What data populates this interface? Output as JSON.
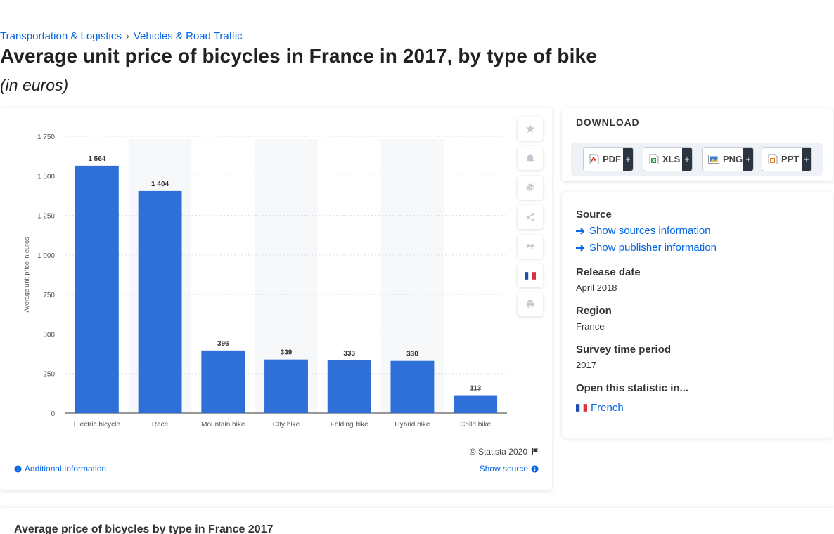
{
  "breadcrumb": {
    "items": [
      "Transportation & Logistics",
      "Vehicles & Road Traffic"
    ],
    "separator": "›"
  },
  "page": {
    "title": "Average unit price of bicycles in France in 2017, by type of bike",
    "subtitle": "(in euros)"
  },
  "chart_data": {
    "type": "bar",
    "categories": [
      "Electric bicycle",
      "Race",
      "Mountain bike",
      "City bike",
      "Folding bike",
      "Hybrid bike",
      "Child bike"
    ],
    "values": [
      1564,
      1404,
      396,
      339,
      333,
      330,
      113
    ],
    "value_labels": [
      "1 564",
      "1 404",
      "396",
      "339",
      "333",
      "330",
      "113"
    ],
    "ylabel": "Average unit price in euros",
    "xlabel": "",
    "ylim": [
      0,
      1750
    ],
    "yticks": [
      0,
      250,
      500,
      750,
      1000,
      1250,
      1500,
      1750
    ],
    "ytick_labels": [
      "0",
      "250",
      "500",
      "750",
      "1 000",
      "1 250",
      "1 500",
      "1 750"
    ],
    "bar_color": "#2f6fd8",
    "grid": true
  },
  "chart_footer": {
    "credit": "© Statista 2020",
    "additional_info": "Additional Information",
    "show_source": "Show source"
  },
  "toolbar": {
    "buttons": [
      "star-icon",
      "bell-icon",
      "gear-icon",
      "share-icon",
      "quote-icon",
      "french-flag-icon",
      "print-icon"
    ]
  },
  "download": {
    "title": "DOWNLOAD",
    "formats": [
      {
        "label": "PDF",
        "color": "#d9352b"
      },
      {
        "label": "XLS",
        "color": "#2f9a45"
      },
      {
        "label": "PNG",
        "color": "#3a7bd5"
      },
      {
        "label": "PPT",
        "color": "#e07b26"
      }
    ],
    "plus": "+"
  },
  "info": {
    "source_heading": "Source",
    "show_sources": "Show sources information",
    "show_publisher": "Show publisher information",
    "release_heading": "Release date",
    "release_value": "April 2018",
    "region_heading": "Region",
    "region_value": "France",
    "survey_heading": "Survey time period",
    "survey_value": "2017",
    "open_heading": "Open this statistic in...",
    "open_language": "French"
  },
  "bottom": {
    "title": "Average price of bicycles by type in France 2017"
  }
}
